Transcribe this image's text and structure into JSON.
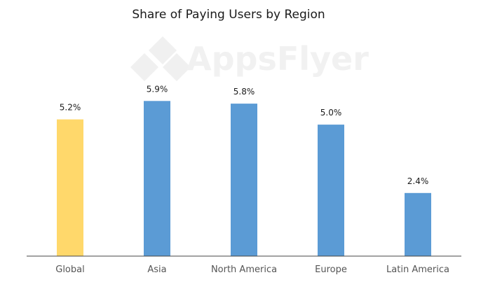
{
  "watermark": "AppsFlyer",
  "chart_data": {
    "type": "bar",
    "title": "Share of Paying Users by Region",
    "categories": [
      "Global",
      "Asia",
      "North America",
      "Europe",
      "Latin America"
    ],
    "values": [
      5.2,
      5.9,
      5.8,
      5.0,
      2.4
    ],
    "value_labels": [
      "5.2%",
      "5.9%",
      "5.8%",
      "5.0%",
      "2.4%"
    ],
    "colors": [
      "#FFD86B",
      "#5B9BD5",
      "#5B9BD5",
      "#5B9BD5",
      "#5B9BD5"
    ],
    "xlabel": "",
    "ylabel": "",
    "ylim": [
      0,
      6.6
    ],
    "grid": false,
    "legend": false,
    "axis_color": "#444444"
  }
}
